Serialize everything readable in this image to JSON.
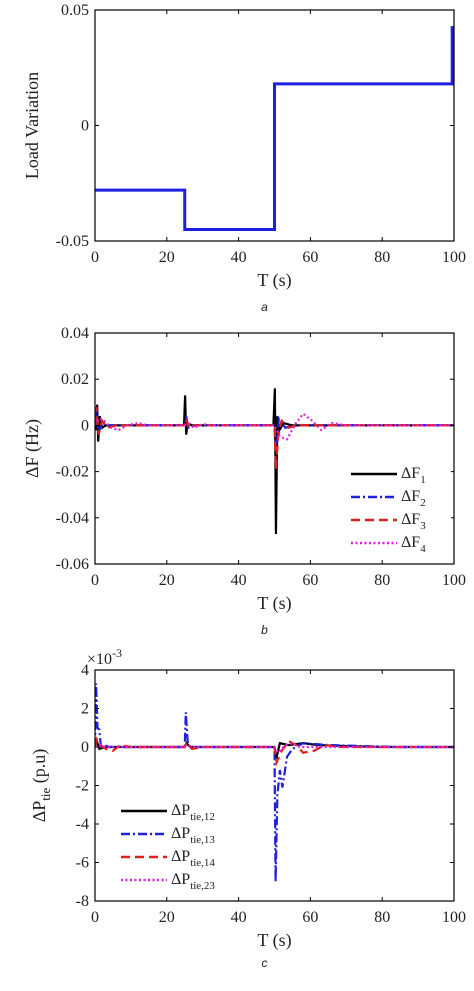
{
  "chart_data": [
    {
      "type": "line",
      "panel_label": "a",
      "xlabel": "T (s)",
      "ylabel": "Load Variation",
      "xlim": [
        0,
        100
      ],
      "ylim": [
        -0.05,
        0.05
      ],
      "xticks": [
        "0",
        "20",
        "40",
        "60",
        "80",
        "100"
      ],
      "yticks": [
        "-0.05",
        "0",
        "0.05"
      ],
      "grid": false,
      "series": [
        {
          "color": "#1f1fe0",
          "style": "solid",
          "points": [
            [
              0,
              -0.028
            ],
            [
              25,
              -0.028
            ],
            [
              25,
              -0.045
            ],
            [
              50,
              -0.045
            ],
            [
              50,
              0.018
            ],
            [
              99.5,
              0.018
            ],
            [
              99.5,
              0.043
            ]
          ]
        }
      ]
    },
    {
      "type": "line",
      "panel_label": "b",
      "xlabel": "T (s)",
      "ylabel": "ΔF (Hz)",
      "xlim": [
        0,
        100
      ],
      "ylim": [
        -0.06,
        0.04
      ],
      "xticks": [
        "0",
        "20",
        "40",
        "60",
        "80",
        "100"
      ],
      "yticks": [
        "0.04",
        "0.02",
        "0",
        "-0.02",
        "-0.04",
        "-0.06"
      ],
      "grid": false,
      "legend_position": "lower-right",
      "series": [
        {
          "name": "ΔF",
          "name_sub": "1",
          "color": "#000000",
          "style": "solid",
          "points": [
            [
              0,
              0
            ],
            [
              0.3,
              -0.002
            ],
            [
              0.6,
              0.009
            ],
            [
              0.9,
              -0.007
            ],
            [
              1.3,
              0.004
            ],
            [
              2,
              -0.001
            ],
            [
              3,
              0
            ],
            [
              24.8,
              0
            ],
            [
              25.1,
              0.013
            ],
            [
              25.4,
              -0.004
            ],
            [
              25.8,
              0.001
            ],
            [
              27,
              0
            ],
            [
              49.7,
              0
            ],
            [
              50.1,
              0.016
            ],
            [
              50.4,
              -0.047
            ],
            [
              50.8,
              0.004
            ],
            [
              51.4,
              -0.002
            ],
            [
              52.5,
              0.001
            ],
            [
              55,
              0
            ],
            [
              100,
              0
            ]
          ]
        },
        {
          "name": "ΔF",
          "name_sub": "2",
          "color": "#1f1fe0",
          "style": "dashdot",
          "points": [
            [
              0,
              0
            ],
            [
              0.5,
              0.006
            ],
            [
              1,
              -0.003
            ],
            [
              2,
              0.001
            ],
            [
              4,
              0
            ],
            [
              25,
              0
            ],
            [
              25.4,
              0.004
            ],
            [
              26,
              -0.001
            ],
            [
              28,
              0
            ],
            [
              50,
              0
            ],
            [
              50.5,
              -0.012
            ],
            [
              51.2,
              0.003
            ],
            [
              53,
              -0.001
            ],
            [
              56,
              0
            ],
            [
              100,
              0
            ]
          ]
        },
        {
          "name": "ΔF",
          "name_sub": "3",
          "color": "#e01f1f",
          "style": "dashed",
          "points": [
            [
              0,
              0
            ],
            [
              0.4,
              0.008
            ],
            [
              1,
              -0.004
            ],
            [
              2,
              0.002
            ],
            [
              3.5,
              -0.001
            ],
            [
              6,
              0
            ],
            [
              25,
              0
            ],
            [
              25.4,
              0.003
            ],
            [
              26.2,
              -0.001
            ],
            [
              28,
              0
            ],
            [
              50,
              0
            ],
            [
              50.4,
              -0.019
            ],
            [
              51,
              -0.005
            ],
            [
              52,
              0.002
            ],
            [
              54,
              -0.001
            ],
            [
              56,
              0
            ],
            [
              100,
              0
            ]
          ]
        },
        {
          "name": "ΔF",
          "name_sub": "4",
          "color": "#e01fe0",
          "style": "dotted",
          "points": [
            [
              0,
              0
            ],
            [
              1,
              0.003
            ],
            [
              2.5,
              0.002
            ],
            [
              4.5,
              -0.001
            ],
            [
              6.5,
              -0.002
            ],
            [
              9,
              0
            ],
            [
              12,
              0.001
            ],
            [
              15,
              0
            ],
            [
              25,
              0
            ],
            [
              26,
              0.001
            ],
            [
              27.5,
              -0.001
            ],
            [
              30,
              0.0005
            ],
            [
              33,
              0
            ],
            [
              50,
              0
            ],
            [
              51.5,
              -0.005
            ],
            [
              53.5,
              -0.006
            ],
            [
              56,
              0.001
            ],
            [
              58,
              0.005
            ],
            [
              60.5,
              0.002
            ],
            [
              63,
              -0.002
            ],
            [
              66,
              0.001
            ],
            [
              70,
              0
            ],
            [
              100,
              0
            ]
          ]
        }
      ]
    },
    {
      "type": "line",
      "panel_label": "c",
      "xlabel": "T (s)",
      "ylabel": "ΔP",
      "ylabel_sub": "tie",
      "ylabel_unit": "(p.u)",
      "y_multiplier": "×10",
      "y_multiplier_exp": "-3",
      "xlim": [
        0,
        100
      ],
      "ylim": [
        -8,
        4
      ],
      "xticks": [
        "0",
        "20",
        "40",
        "60",
        "80",
        "100"
      ],
      "yticks": [
        "4",
        "2",
        "0",
        "-2",
        "-4",
        "-6",
        "-8"
      ],
      "grid": false,
      "legend_position": "lower-left",
      "series": [
        {
          "name": "ΔP",
          "name_sub": "tie,12",
          "color": "#000000",
          "style": "solid",
          "points": [
            [
              0,
              0
            ],
            [
              0.5,
              0.3
            ],
            [
              1.2,
              -0.1
            ],
            [
              3,
              0
            ],
            [
              25,
              0
            ],
            [
              25.5,
              0.2
            ],
            [
              26.5,
              0
            ],
            [
              50,
              0
            ],
            [
              50.5,
              -0.6
            ],
            [
              51.5,
              0.2
            ],
            [
              54,
              0.1
            ],
            [
              58,
              0.2
            ],
            [
              62,
              0.1
            ],
            [
              70,
              0.05
            ],
            [
              80,
              0
            ],
            [
              100,
              0
            ]
          ]
        },
        {
          "name": "ΔP",
          "name_sub": "tie,13",
          "color": "#1f1fe0",
          "style": "dashdot",
          "points": [
            [
              0,
              0
            ],
            [
              0.3,
              3.3
            ],
            [
              0.7,
              1
            ],
            [
              1.2,
              0.9
            ],
            [
              1.7,
              -0.1
            ],
            [
              2.5,
              0.1
            ],
            [
              4,
              0
            ],
            [
              25,
              0
            ],
            [
              25.3,
              1.8
            ],
            [
              25.8,
              0.3
            ],
            [
              26.6,
              0
            ],
            [
              50,
              0
            ],
            [
              50.3,
              -7
            ],
            [
              50.8,
              -2.5
            ],
            [
              51.5,
              -1.2
            ],
            [
              52.2,
              -2.1
            ],
            [
              53.5,
              -0.5
            ],
            [
              55,
              -0.1
            ],
            [
              58,
              0.2
            ],
            [
              65,
              0.1
            ],
            [
              75,
              0.05
            ],
            [
              85,
              0
            ],
            [
              100,
              0
            ]
          ]
        },
        {
          "name": "ΔP",
          "name_sub": "tie,14",
          "color": "#e01f1f",
          "style": "dashed",
          "points": [
            [
              0,
              0
            ],
            [
              0.5,
              0.4
            ],
            [
              1.5,
              0.1
            ],
            [
              3,
              -0.1
            ],
            [
              5,
              -0.2
            ],
            [
              7,
              0.1
            ],
            [
              10,
              0
            ],
            [
              25,
              0
            ],
            [
              25.5,
              0.2
            ],
            [
              27,
              -0.1
            ],
            [
              30,
              0
            ],
            [
              50,
              0
            ],
            [
              50.6,
              -0.8
            ],
            [
              52,
              -0.2
            ],
            [
              54,
              0.3
            ],
            [
              56,
              0.1
            ],
            [
              58,
              -0.3
            ],
            [
              61,
              -0.2
            ],
            [
              64,
              0.1
            ],
            [
              68,
              0
            ],
            [
              100,
              0
            ]
          ]
        },
        {
          "name": "ΔP",
          "name_sub": "tie,23",
          "color": "#e01fe0",
          "style": "dotted",
          "points": [
            [
              0,
              0
            ],
            [
              1,
              0.1
            ],
            [
              3,
              0
            ],
            [
              25,
              0
            ],
            [
              26,
              0.05
            ],
            [
              28,
              0
            ],
            [
              50,
              0
            ],
            [
              51,
              -0.3
            ],
            [
              53,
              0.1
            ],
            [
              55,
              0.2
            ],
            [
              57,
              0
            ],
            [
              60,
              0
            ],
            [
              100,
              0
            ]
          ]
        }
      ]
    }
  ]
}
